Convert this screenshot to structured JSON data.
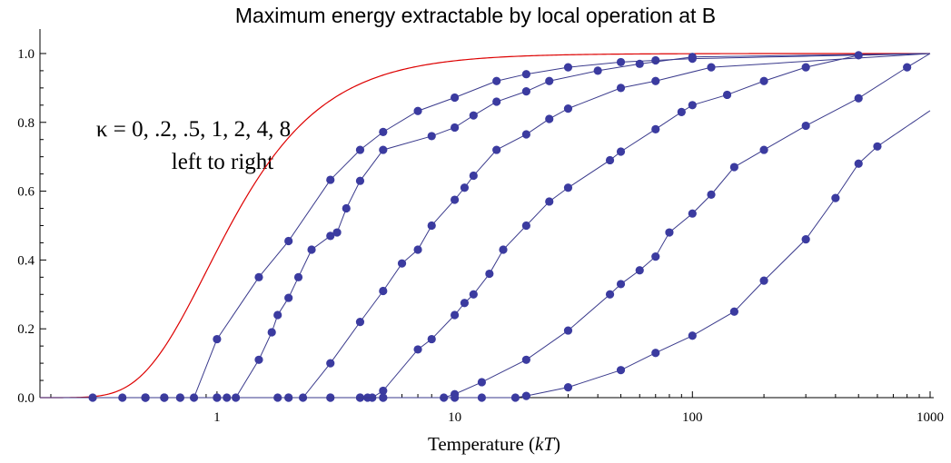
{
  "chart_data": {
    "type": "line",
    "title": "Maximum energy extractable by local operation at B",
    "xlabel_text": "Temperature (",
    "xlabel_var": "kT",
    "xlabel_close": ")",
    "ylabel": "",
    "xscale": "log",
    "xlim": [
      0.18,
      1000
    ],
    "ylim": [
      0,
      1.05
    ],
    "x_ticks": [
      1,
      10,
      100,
      1000
    ],
    "x_tick_labels": [
      "1",
      "10",
      "100",
      "1000"
    ],
    "y_ticks": [
      0,
      0.2,
      0.4,
      0.6,
      0.8,
      1.0
    ],
    "y_tick_labels": [
      "0.0",
      "0.2",
      "0.4",
      "0.6",
      "0.8",
      "1.0"
    ],
    "annotation_line1": "κ = 0, .2, .5, 1, 2, 4, 8",
    "annotation_line2": "left to right",
    "colors": {
      "limit_curve": "#dd0000",
      "series_line": "#3a3a8c",
      "series_marker": "#3b3ba0"
    },
    "series": [
      {
        "onset": 0.8,
        "x": [
          0.5,
          1,
          1.5,
          2,
          3,
          4,
          5,
          7,
          10,
          15,
          20,
          30,
          50,
          70,
          100
        ],
        "values": [
          0,
          0.17,
          0.35,
          0.455,
          0.633,
          0.72,
          0.772,
          0.833,
          0.872,
          0.92,
          0.94,
          0.96,
          0.975,
          0.98,
          0.985
        ]
      },
      {
        "onset": 1.2,
        "x": [
          1.2,
          1.5,
          1.7,
          1.8,
          2,
          2.2,
          2.5,
          3,
          3.2,
          3.5,
          4,
          5,
          8,
          10,
          12,
          15,
          20,
          25,
          40,
          60,
          100
        ],
        "values": [
          0,
          0.11,
          0.19,
          0.24,
          0.29,
          0.35,
          0.43,
          0.47,
          0.48,
          0.55,
          0.63,
          0.72,
          0.76,
          0.785,
          0.82,
          0.86,
          0.89,
          0.92,
          0.95,
          0.97,
          0.99
        ]
      },
      {
        "onset": 2.3,
        "x": [
          2.3,
          3,
          4,
          5,
          6,
          7,
          8,
          10,
          11,
          12,
          15,
          20,
          25,
          30,
          50,
          70,
          120
        ],
        "values": [
          0,
          0.1,
          0.22,
          0.31,
          0.39,
          0.43,
          0.5,
          0.575,
          0.61,
          0.645,
          0.72,
          0.765,
          0.81,
          0.84,
          0.9,
          0.92,
          0.96
        ]
      },
      {
        "onset": 4.5,
        "x": [
          4.5,
          5,
          7,
          8,
          10,
          11,
          12,
          14,
          16,
          20,
          25,
          30,
          45,
          50,
          70,
          90,
          100,
          140,
          200,
          300,
          500
        ],
        "values": [
          0,
          0.02,
          0.14,
          0.17,
          0.24,
          0.275,
          0.3,
          0.36,
          0.43,
          0.5,
          0.57,
          0.61,
          0.69,
          0.715,
          0.78,
          0.83,
          0.85,
          0.88,
          0.92,
          0.96,
          0.995
        ]
      },
      {
        "onset": 9,
        "x": [
          9,
          10,
          13,
          20,
          30,
          45,
          50,
          60,
          70,
          80,
          100,
          120,
          150,
          200,
          300,
          500,
          800
        ],
        "values": [
          0,
          0.01,
          0.045,
          0.11,
          0.195,
          0.3,
          0.33,
          0.37,
          0.41,
          0.48,
          0.535,
          0.59,
          0.67,
          0.72,
          0.79,
          0.87,
          0.96
        ]
      },
      {
        "onset": 18,
        "x": [
          18,
          20,
          30,
          50,
          70,
          100,
          150,
          200,
          300,
          400,
          500,
          600
        ],
        "values": [
          0,
          0.005,
          0.03,
          0.08,
          0.13,
          0.18,
          0.25,
          0.34,
          0.46,
          0.58,
          0.68,
          0.73
        ]
      }
    ],
    "series_zero_points": [
      [
        0.3,
        0.4,
        0.5,
        0.6,
        0.7
      ],
      [
        0.5,
        0.6,
        0.7,
        0.8,
        1.0,
        1.1
      ],
      [
        0.5,
        0.6,
        1.0,
        1.8,
        2.0
      ],
      [
        2.0,
        3.0,
        4.0,
        4.3
      ],
      [
        3.0,
        4.0,
        5.0
      ],
      [
        5.0,
        10.0,
        13.0
      ]
    ]
  }
}
